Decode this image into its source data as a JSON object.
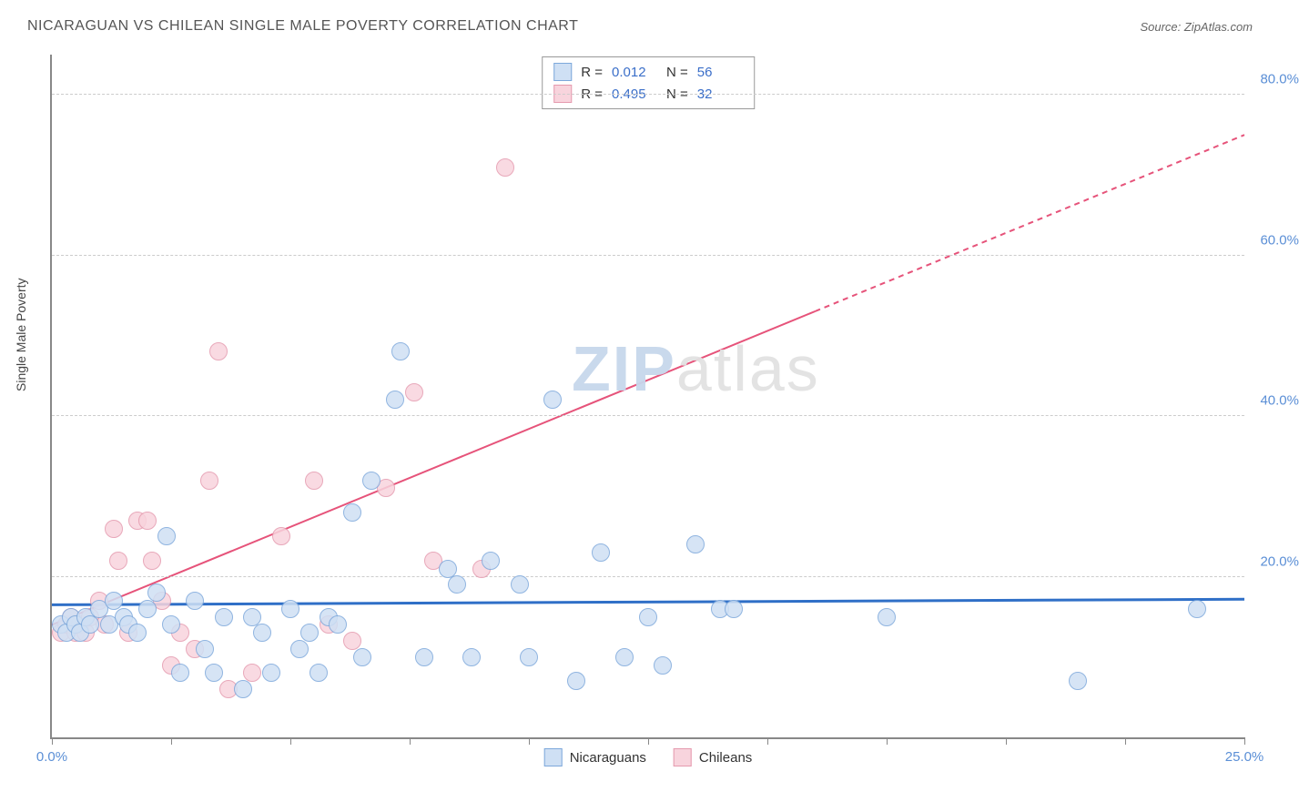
{
  "title": "NICARAGUAN VS CHILEAN SINGLE MALE POVERTY CORRELATION CHART",
  "source": "Source: ZipAtlas.com",
  "ylabel": "Single Male Poverty",
  "watermark_z": "ZIP",
  "watermark_rest": "atlas",
  "chart": {
    "type": "scatter",
    "xlim": [
      0,
      25
    ],
    "ylim": [
      0,
      85
    ],
    "yticks": [
      20,
      40,
      60,
      80
    ],
    "ytick_labels": [
      "20.0%",
      "40.0%",
      "60.0%",
      "80.0%"
    ],
    "xticks": [
      0,
      2.5,
      5,
      7.5,
      10,
      12.5,
      15,
      17.5,
      20,
      22.5,
      25
    ],
    "xtick_labels": {
      "0": "0.0%",
      "25": "25.0%"
    },
    "background_color": "#ffffff",
    "grid_color": "#cccccc",
    "axis_color": "#888888",
    "point_radius": 9,
    "series": {
      "nicaraguans": {
        "label": "Nicaraguans",
        "fill": "#cfe0f4",
        "stroke": "#7da8db",
        "trend_color": "#2f6fc7",
        "trend_width": 3,
        "R": "0.012",
        "N": "56",
        "trend": {
          "x1": 0,
          "y1": 16.5,
          "x2": 25,
          "y2": 17.2,
          "dash_from_x": null
        },
        "points": [
          [
            0.2,
            14
          ],
          [
            0.3,
            13
          ],
          [
            0.4,
            15
          ],
          [
            0.5,
            14
          ],
          [
            0.6,
            13
          ],
          [
            0.7,
            15
          ],
          [
            0.8,
            14
          ],
          [
            1.0,
            16
          ],
          [
            1.2,
            14
          ],
          [
            1.3,
            17
          ],
          [
            1.5,
            15
          ],
          [
            1.6,
            14
          ],
          [
            1.8,
            13
          ],
          [
            2.0,
            16
          ],
          [
            2.2,
            18
          ],
          [
            2.4,
            25
          ],
          [
            2.5,
            14
          ],
          [
            2.7,
            8
          ],
          [
            3.0,
            17
          ],
          [
            3.2,
            11
          ],
          [
            3.4,
            8
          ],
          [
            3.6,
            15
          ],
          [
            4.0,
            6
          ],
          [
            4.2,
            15
          ],
          [
            4.4,
            13
          ],
          [
            4.6,
            8
          ],
          [
            5.0,
            16
          ],
          [
            5.2,
            11
          ],
          [
            5.4,
            13
          ],
          [
            5.6,
            8
          ],
          [
            5.8,
            15
          ],
          [
            6.0,
            14
          ],
          [
            6.3,
            28
          ],
          [
            6.5,
            10
          ],
          [
            6.7,
            32
          ],
          [
            7.2,
            42
          ],
          [
            7.3,
            48
          ],
          [
            7.8,
            10
          ],
          [
            8.3,
            21
          ],
          [
            8.5,
            19
          ],
          [
            8.8,
            10
          ],
          [
            9.2,
            22
          ],
          [
            9.8,
            19
          ],
          [
            10.0,
            10
          ],
          [
            10.5,
            42
          ],
          [
            11.0,
            7
          ],
          [
            11.5,
            23
          ],
          [
            12.0,
            10
          ],
          [
            12.5,
            15
          ],
          [
            12.8,
            9
          ],
          [
            13.5,
            24
          ],
          [
            14.0,
            16
          ],
          [
            14.3,
            16
          ],
          [
            17.5,
            15
          ],
          [
            21.5,
            7
          ],
          [
            24.0,
            16
          ]
        ]
      },
      "chileans": {
        "label": "Chileans",
        "fill": "#f8d4dd",
        "stroke": "#e59aae",
        "trend_color": "#e6537a",
        "trend_width": 2,
        "R": "0.495",
        "N": "32",
        "trend": {
          "x1": 0,
          "y1": 14,
          "x2": 25,
          "y2": 75,
          "dash_from_x": 16
        },
        "points": [
          [
            0.2,
            13
          ],
          [
            0.3,
            14
          ],
          [
            0.4,
            15
          ],
          [
            0.5,
            13
          ],
          [
            0.6,
            14
          ],
          [
            0.7,
            13
          ],
          [
            0.8,
            15
          ],
          [
            1.0,
            17
          ],
          [
            1.1,
            14
          ],
          [
            1.3,
            26
          ],
          [
            1.4,
            22
          ],
          [
            1.6,
            13
          ],
          [
            1.8,
            27
          ],
          [
            2.0,
            27
          ],
          [
            2.1,
            22
          ],
          [
            2.3,
            17
          ],
          [
            2.5,
            9
          ],
          [
            2.7,
            13
          ],
          [
            3.0,
            11
          ],
          [
            3.3,
            32
          ],
          [
            3.5,
            48
          ],
          [
            3.7,
            6
          ],
          [
            4.2,
            8
          ],
          [
            4.8,
            25
          ],
          [
            5.5,
            32
          ],
          [
            5.8,
            14
          ],
          [
            6.3,
            12
          ],
          [
            7.0,
            31
          ],
          [
            7.6,
            43
          ],
          [
            8.0,
            22
          ],
          [
            9.0,
            21
          ],
          [
            9.5,
            71
          ]
        ]
      }
    }
  },
  "stats_box": {
    "R_label": "R  =",
    "N_label": "N  ="
  }
}
